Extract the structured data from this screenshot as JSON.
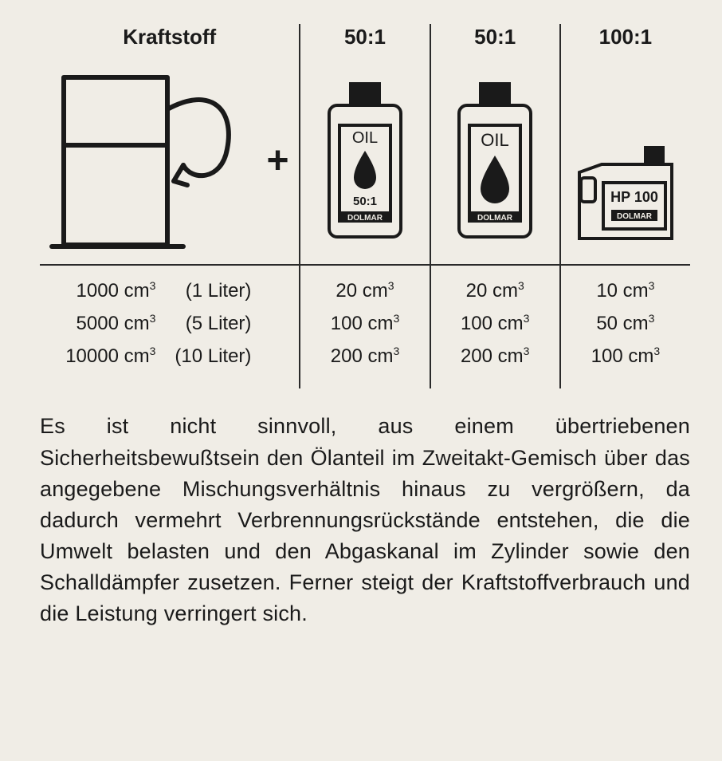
{
  "colors": {
    "background": "#f0ede6",
    "ink": "#1a1a1a",
    "rule": "#2a2a2a"
  },
  "typography": {
    "header_fontsize": 26,
    "data_fontsize": 24,
    "body_fontsize": 27,
    "plus_fontsize": 48,
    "font_family": "Arial, Helvetica, sans-serif"
  },
  "table": {
    "columns": [
      {
        "key": "fuel",
        "header": "Kraftstoff",
        "type": "fuel-pump"
      },
      {
        "key": "oil50a",
        "header": "50:1",
        "type": "oil-bottle",
        "bottle": {
          "top": "OIL",
          "mid": "50:1",
          "brand": "DOLMAR"
        }
      },
      {
        "key": "oil50b",
        "header": "50:1",
        "type": "oil-bottle",
        "bottle": {
          "top": "OIL",
          "brand": "DOLMAR"
        }
      },
      {
        "key": "oil100",
        "header": "100:1",
        "type": "oil-can",
        "can": {
          "label": "HP 100",
          "brand": "DOLMAR"
        }
      }
    ],
    "plus_symbol": "+",
    "rows": [
      {
        "fuel_cm3": "1000 cm³",
        "fuel_liter": "(1 Liter)",
        "oil50a": "20 cm³",
        "oil50b": "20 cm³",
        "oil100": "10 cm³"
      },
      {
        "fuel_cm3": "5000 cm³",
        "fuel_liter": "(5 Liter)",
        "oil50a": "100 cm³",
        "oil50b": "100 cm³",
        "oil100": "50 cm³"
      },
      {
        "fuel_cm3": "10000 cm³",
        "fuel_liter": "(10 Liter)",
        "oil50a": "200 cm³",
        "oil50b": "200 cm³",
        "oil100": "100 cm³"
      }
    ]
  },
  "body_text": "Es ist nicht sinnvoll, aus einem übertriebenen Sicherheitsbewußtsein den Ölanteil im Zweitakt-Gemisch über das angegebene Mischungsverhältnis hinaus zu vergrößern, da dadurch vermehrt Verbrennungsrückstände entstehen, die die Umwelt belasten und den Abgaskanal im Zylinder sowie den Schalldämpfer zusetzen. Ferner steigt der Kraftstoffverbrauch und die Leistung verringert sich."
}
